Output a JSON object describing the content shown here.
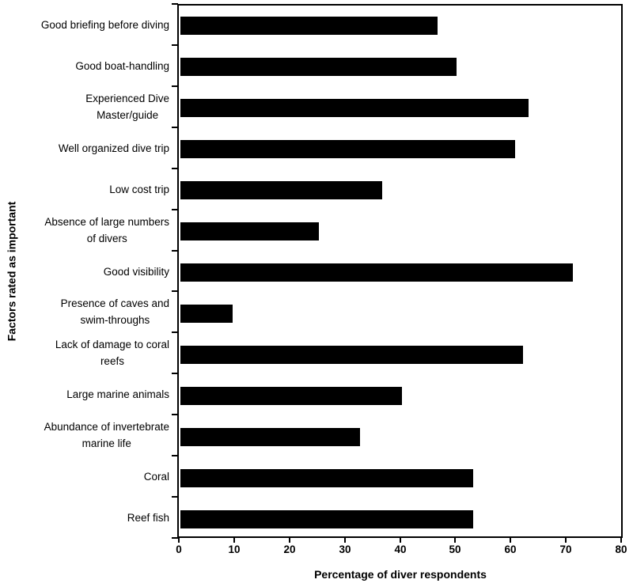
{
  "chart_data": {
    "type": "bar",
    "orientation": "horizontal",
    "title": "",
    "xlabel": "Percentage of diver respondents",
    "ylabel": "Factors rated as important",
    "xlim": [
      0,
      80
    ],
    "xticks": [
      0,
      10,
      20,
      30,
      40,
      50,
      60,
      70,
      80
    ],
    "grid": false,
    "legend": false,
    "bar_color": "#000000",
    "background_color": "#ffffff",
    "border_color": "#000000",
    "categories": [
      "Good briefing before diving",
      "Good boat-handling",
      "Experienced Dive\nMaster/guide",
      "Well organized dive trip",
      "Low cost trip",
      "Absence of large numbers\nof divers",
      "Good visibility",
      "Presence of caves and\nswim-throughs",
      "Lack of damage to coral\nreefs",
      "Large marine animals",
      "Abundance of invertebrate\nmarine life",
      "Coral",
      "Reef fish"
    ],
    "values": [
      46.5,
      50,
      63,
      60.5,
      36.5,
      25,
      71,
      9.5,
      62,
      40,
      32.5,
      53,
      53
    ]
  }
}
